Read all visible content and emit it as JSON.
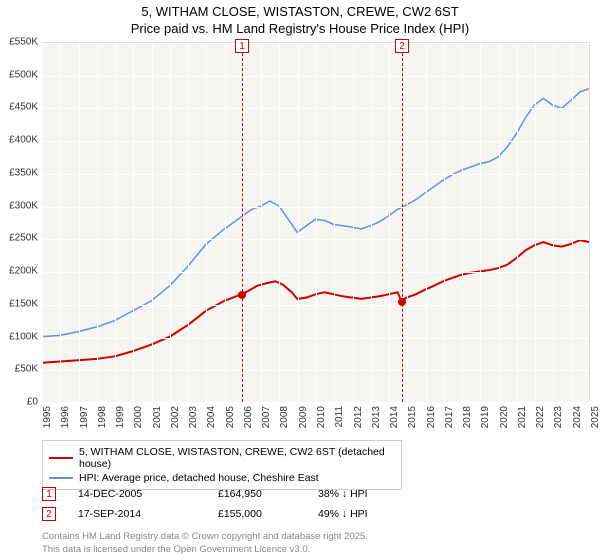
{
  "title": {
    "line1": "5, WITHAM CLOSE, WISTASTON, CREWE, CW2 6ST",
    "line2": "Price paid vs. HM Land Registry's House Price Index (HPI)"
  },
  "chart": {
    "type": "line",
    "background_color": "#f6f5f2",
    "grid_color": "#ffffff",
    "y": {
      "min": 0,
      "max": 550,
      "step": 50,
      "ticks": [
        "£0",
        "£50K",
        "£100K",
        "£150K",
        "£200K",
        "£250K",
        "£300K",
        "£350K",
        "£400K",
        "£450K",
        "£500K",
        "£550K"
      ],
      "label_fontsize": 10,
      "label_color": "#333333"
    },
    "x": {
      "min": 1995,
      "max": 2025,
      "step": 1,
      "ticks": [
        "1995",
        "1996",
        "1997",
        "1998",
        "1999",
        "2000",
        "2001",
        "2002",
        "2003",
        "2004",
        "2005",
        "2006",
        "2007",
        "2008",
        "2009",
        "2010",
        "2011",
        "2012",
        "2013",
        "2014",
        "2015",
        "2016",
        "2017",
        "2018",
        "2019",
        "2020",
        "2021",
        "2022",
        "2023",
        "2024",
        "2025"
      ],
      "label_fontsize": 10,
      "label_color": "#333333"
    },
    "series": {
      "price_paid": {
        "label": "5, WITHAM CLOSE, WISTASTON, CREWE, CW2 6ST (detached house)",
        "color": "#cc0000",
        "line_width": 2,
        "data": [
          [
            1995,
            60
          ],
          [
            1996,
            62
          ],
          [
            1997,
            64
          ],
          [
            1998,
            66
          ],
          [
            1999,
            70
          ],
          [
            2000,
            78
          ],
          [
            2001,
            88
          ],
          [
            2002,
            100
          ],
          [
            2003,
            118
          ],
          [
            2004,
            140
          ],
          [
            2005,
            155
          ],
          [
            2005.95,
            165
          ],
          [
            2006.3,
            170
          ],
          [
            2006.8,
            178
          ],
          [
            2007.3,
            182
          ],
          [
            2007.8,
            185
          ],
          [
            2008.2,
            180
          ],
          [
            2008.7,
            168
          ],
          [
            2009,
            158
          ],
          [
            2009.5,
            160
          ],
          [
            2010,
            165
          ],
          [
            2010.5,
            168
          ],
          [
            2011,
            165
          ],
          [
            2011.5,
            162
          ],
          [
            2012,
            160
          ],
          [
            2012.5,
            158
          ],
          [
            2013,
            160
          ],
          [
            2013.5,
            162
          ],
          [
            2014,
            165
          ],
          [
            2014.5,
            168
          ],
          [
            2014.71,
            155
          ],
          [
            2015,
            160
          ],
          [
            2015.5,
            165
          ],
          [
            2016,
            172
          ],
          [
            2016.5,
            178
          ],
          [
            2017,
            185
          ],
          [
            2017.5,
            190
          ],
          [
            2018,
            195
          ],
          [
            2018.5,
            198
          ],
          [
            2019,
            200
          ],
          [
            2019.5,
            202
          ],
          [
            2020,
            205
          ],
          [
            2020.5,
            210
          ],
          [
            2021,
            220
          ],
          [
            2021.5,
            232
          ],
          [
            2022,
            240
          ],
          [
            2022.5,
            245
          ],
          [
            2023,
            240
          ],
          [
            2023.5,
            238
          ],
          [
            2024,
            242
          ],
          [
            2024.5,
            248
          ],
          [
            2025,
            245
          ]
        ]
      },
      "hpi": {
        "label": "HPI: Average price, detached house, Cheshire East",
        "color": "#6a8fd8",
        "line_width": 1.5,
        "data": [
          [
            1995,
            100
          ],
          [
            1996,
            102
          ],
          [
            1997,
            108
          ],
          [
            1998,
            115
          ],
          [
            1999,
            125
          ],
          [
            2000,
            140
          ],
          [
            2001,
            155
          ],
          [
            2002,
            178
          ],
          [
            2003,
            208
          ],
          [
            2004,
            242
          ],
          [
            2005,
            265
          ],
          [
            2005.5,
            275
          ],
          [
            2006,
            285
          ],
          [
            2006.5,
            295
          ],
          [
            2007,
            300
          ],
          [
            2007.5,
            308
          ],
          [
            2008,
            300
          ],
          [
            2008.5,
            280
          ],
          [
            2009,
            260
          ],
          [
            2009.5,
            270
          ],
          [
            2010,
            280
          ],
          [
            2010.5,
            278
          ],
          [
            2011,
            272
          ],
          [
            2011.5,
            270
          ],
          [
            2012,
            268
          ],
          [
            2012.5,
            265
          ],
          [
            2013,
            270
          ],
          [
            2013.5,
            276
          ],
          [
            2014,
            285
          ],
          [
            2014.5,
            295
          ],
          [
            2015,
            302
          ],
          [
            2015.5,
            310
          ],
          [
            2016,
            320
          ],
          [
            2016.5,
            330
          ],
          [
            2017,
            340
          ],
          [
            2017.5,
            348
          ],
          [
            2018,
            355
          ],
          [
            2018.5,
            360
          ],
          [
            2019,
            365
          ],
          [
            2019.5,
            368
          ],
          [
            2020,
            375
          ],
          [
            2020.5,
            390
          ],
          [
            2021,
            410
          ],
          [
            2021.5,
            435
          ],
          [
            2022,
            455
          ],
          [
            2022.5,
            465
          ],
          [
            2023,
            455
          ],
          [
            2023.5,
            450
          ],
          [
            2024,
            462
          ],
          [
            2024.5,
            475
          ],
          [
            2025,
            480
          ]
        ]
      }
    },
    "markers": [
      {
        "num": "1",
        "x": 2005.95,
        "y": 165
      },
      {
        "num": "2",
        "x": 2014.71,
        "y": 155
      }
    ]
  },
  "legend": {
    "border_color": "#cccccc",
    "items": [
      {
        "color": "#cc0000",
        "width": 2,
        "label": "5, WITHAM CLOSE, WISTASTON, CREWE, CW2 6ST (detached house)"
      },
      {
        "color": "#6a8fd8",
        "width": 1.5,
        "label": "HPI: Average price, detached house, Cheshire East"
      }
    ]
  },
  "sales": [
    {
      "num": "1",
      "date": "14-DEC-2005",
      "price": "£164,950",
      "pct": "38% ↓ HPI"
    },
    {
      "num": "2",
      "date": "17-SEP-2014",
      "price": "£155,000",
      "pct": "49% ↓ HPI"
    }
  ],
  "footer": {
    "line1": "Contains HM Land Registry data © Crown copyright and database right 2025.",
    "line2": "This data is licensed under the Open Government Licence v3.0."
  }
}
